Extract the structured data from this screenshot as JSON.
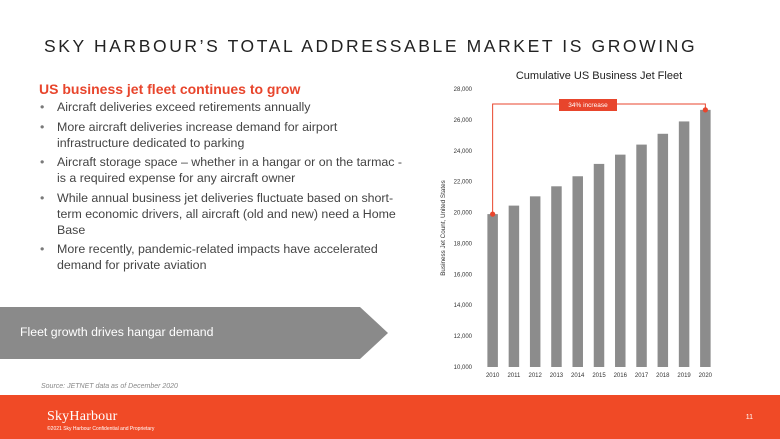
{
  "slide": {
    "title": "SKY HARBOUR’S TOTAL ADDRESSABLE MARKET IS GROWING",
    "subtitle": "US business jet fleet continues to grow",
    "bullets": [
      "Aircraft deliveries exceed retirements annually",
      "More aircraft deliveries increase demand for airport infrastructure dedicated to parking",
      "Aircraft storage space – whether in a hangar or on the tarmac - is a required expense for any aircraft owner",
      "While annual business jet deliveries fluctuate based on short-term economic drivers, all aircraft (old and new) need a Home Base",
      "More recently, pandemic-related impacts have accelerated demand for private aviation"
    ],
    "callout": "Fleet growth drives hangar demand",
    "source": "Source: JETNET data as of December 2020"
  },
  "footer": {
    "logo": "SkyHarbour",
    "copyright": "©2021 Sky Harbour Confidential and Proprietary",
    "page_number": "11"
  },
  "colors": {
    "accent": "#e8452c",
    "bar": "#8c8c8c",
    "callout": "#8a8a8a",
    "footer": "#f04a26",
    "marker": "#e8452c"
  },
  "chart_data": {
    "type": "bar",
    "title": "Cumulative US Business Jet Fleet",
    "ylabel": "Business Jet Count, United States",
    "xlabel": "",
    "categories": [
      "2010",
      "2011",
      "2012",
      "2013",
      "2014",
      "2015",
      "2016",
      "2017",
      "2018",
      "2019",
      "2020"
    ],
    "values": [
      19900,
      20450,
      21050,
      21700,
      22350,
      23150,
      23750,
      24400,
      25100,
      25900,
      26650
    ],
    "ylim": [
      10000,
      28000
    ],
    "yticks": [
      "10,000",
      "12,000",
      "14,000",
      "16,000",
      "18,000",
      "20,000",
      "22,000",
      "24,000",
      "26,000",
      "28,000"
    ],
    "ytick_values": [
      10000,
      12000,
      14000,
      16000,
      18000,
      20000,
      22000,
      24000,
      26000,
      28000
    ],
    "annotation": "34% increase",
    "grid": false,
    "legend": "none"
  }
}
